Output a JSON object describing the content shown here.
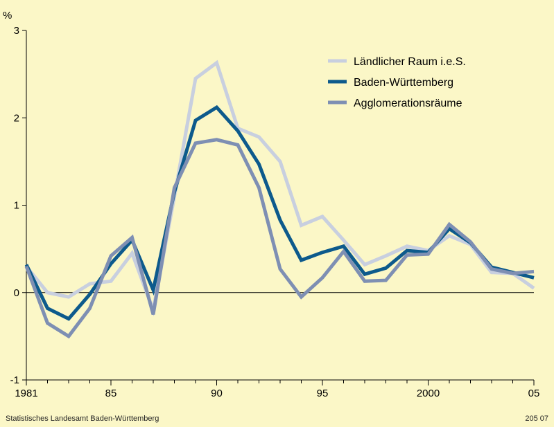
{
  "footer": {
    "source": "Statistisches Landesamt Baden-Württemberg",
    "code": "205 07"
  },
  "chart_data": {
    "type": "line",
    "title": "",
    "xlabel": "",
    "ylabel": "%",
    "xlim": [
      1981,
      2005
    ],
    "ylim": [
      -1,
      3
    ],
    "y_ticks": [
      -1,
      0,
      1,
      2,
      3
    ],
    "x_tick_labels": [
      {
        "x": 1981,
        "label": "1981"
      },
      {
        "x": 1985,
        "label": "85"
      },
      {
        "x": 1990,
        "label": "90"
      },
      {
        "x": 1995,
        "label": "95"
      },
      {
        "x": 2000,
        "label": "2000"
      },
      {
        "x": 2005,
        "label": "05"
      }
    ],
    "x": [
      1981,
      1982,
      1983,
      1984,
      1985,
      1986,
      1987,
      1988,
      1989,
      1990,
      1991,
      1992,
      1993,
      1994,
      1995,
      1996,
      1997,
      1998,
      1999,
      2000,
      2001,
      2002,
      2003,
      2004,
      2005
    ],
    "legend_position": "top-right",
    "grid": false,
    "series": [
      {
        "name": "Ländlicher Raum i.e.S.",
        "color": "#c8cfdf",
        "values": [
          0.3,
          0.0,
          -0.05,
          0.1,
          0.13,
          0.45,
          -0.2,
          1.1,
          2.45,
          2.63,
          1.88,
          1.78,
          1.5,
          0.77,
          0.87,
          0.6,
          0.32,
          0.42,
          0.53,
          0.48,
          0.65,
          0.55,
          0.23,
          0.22,
          0.05
        ]
      },
      {
        "name": "Baden-Württemberg",
        "color": "#0d5a8c",
        "values": [
          0.32,
          -0.18,
          -0.3,
          -0.02,
          0.33,
          0.6,
          0.03,
          1.15,
          1.97,
          2.12,
          1.85,
          1.47,
          0.83,
          0.37,
          0.46,
          0.53,
          0.21,
          0.28,
          0.48,
          0.46,
          0.73,
          0.57,
          0.29,
          0.23,
          0.17
        ]
      },
      {
        "name": "Agglomerationsräume",
        "color": "#7e8fb3",
        "values": [
          0.3,
          -0.35,
          -0.5,
          -0.18,
          0.42,
          0.63,
          -0.25,
          1.2,
          1.71,
          1.75,
          1.69,
          1.2,
          0.27,
          -0.05,
          0.17,
          0.47,
          0.13,
          0.14,
          0.43,
          0.44,
          0.78,
          0.58,
          0.27,
          0.22,
          0.24
        ]
      }
    ]
  }
}
